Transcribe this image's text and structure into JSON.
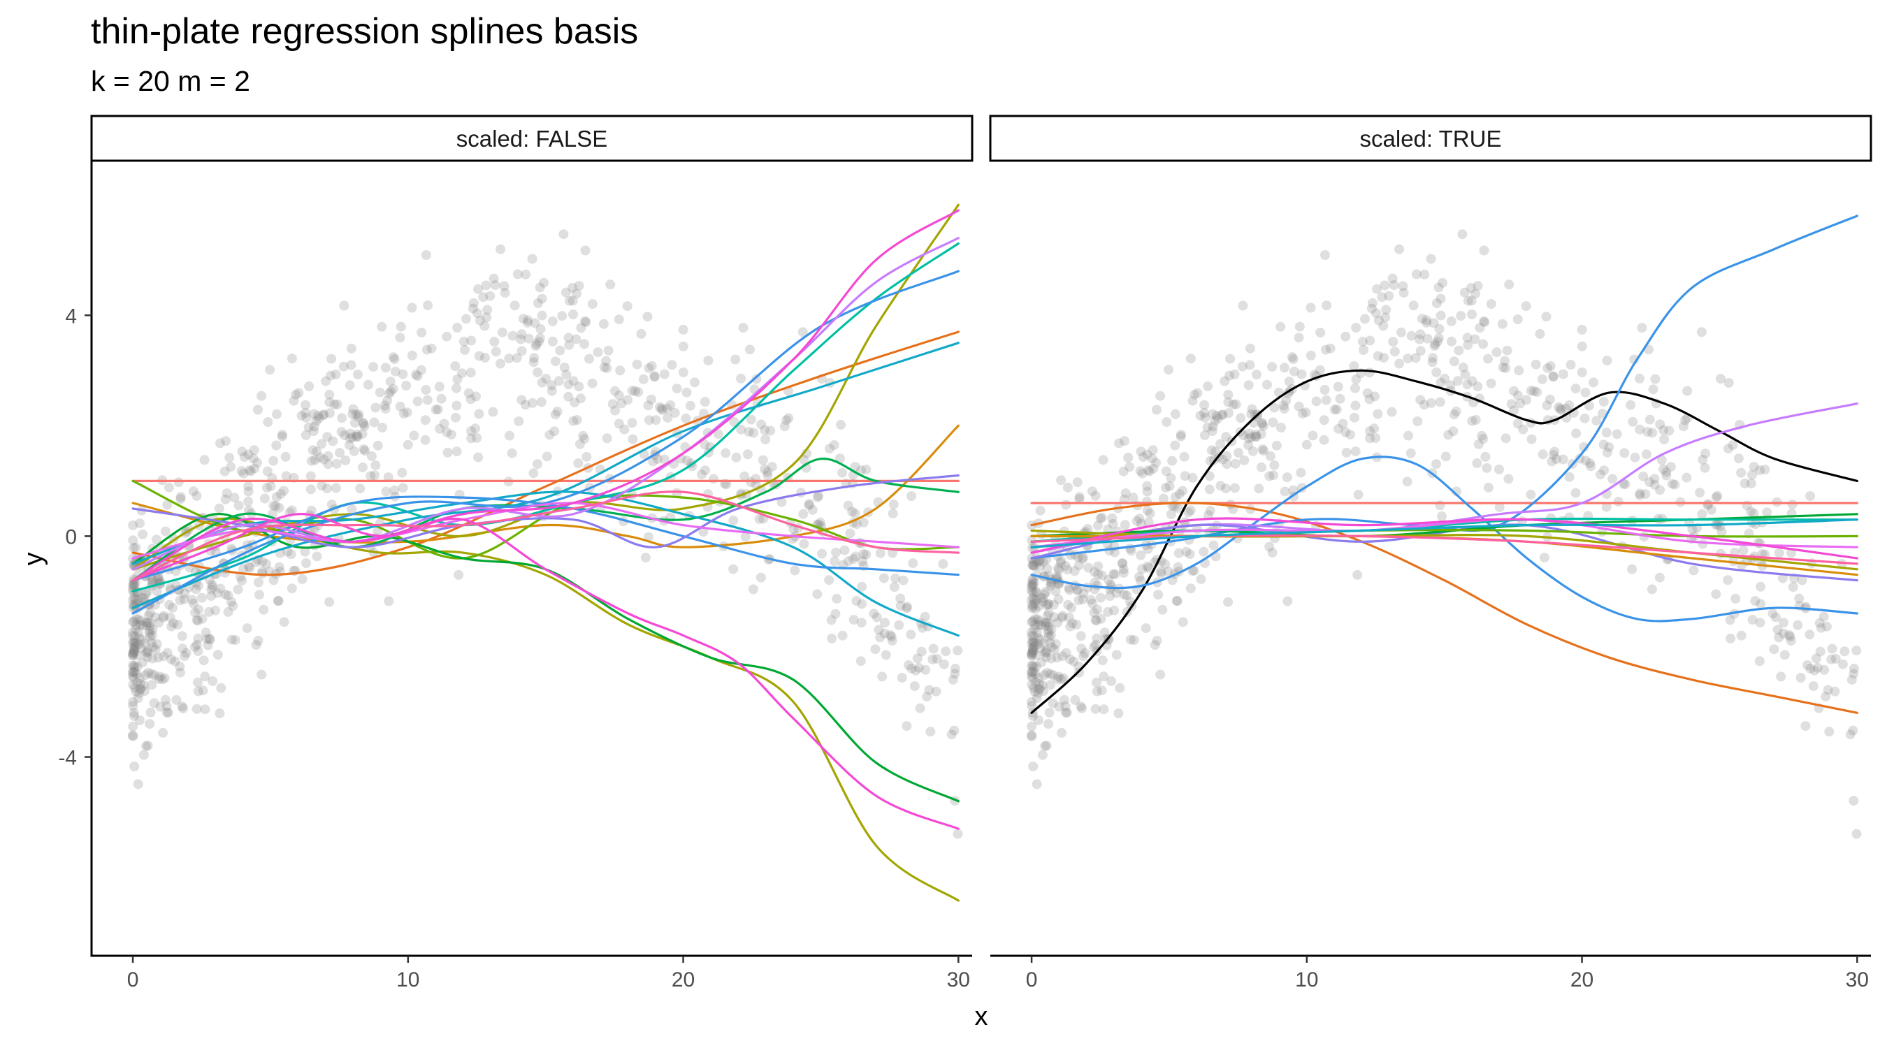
{
  "title": "thin-plate regression splines basis",
  "subtitle": "k = 20 m = 2",
  "chart_data": {
    "type": "line",
    "xlabel": "x",
    "ylabel": "y",
    "xlim": [
      -1.5,
      30.5
    ],
    "ylim": [
      -7.6,
      6.8
    ],
    "x_ticks": [
      0,
      10,
      20,
      30
    ],
    "x_tick_labels": [
      "0",
      "10",
      "20",
      "30"
    ],
    "y_ticks": [
      -4,
      0,
      4
    ],
    "y_tick_labels": [
      "-4",
      "0",
      "4"
    ],
    "grid": false,
    "legend": "none",
    "point_color": "#808080",
    "panels": [
      {
        "strip": "scaled: FALSE",
        "series": [
          {
            "color": "#F8766D",
            "x": [
              0,
              30
            ],
            "y": [
              1.0,
              1.0
            ]
          },
          {
            "color": "#E6711B",
            "x": [
              0,
              5,
              10,
              15,
              20,
              25,
              30
            ],
            "y": [
              -0.3,
              -0.7,
              -0.2,
              0.9,
              2.0,
              2.9,
              3.7
            ]
          },
          {
            "color": "#D98C0A",
            "x": [
              0,
              5,
              10,
              15,
              18,
              20,
              24,
              27,
              30
            ],
            "y": [
              0.6,
              0.0,
              -0.1,
              0.2,
              0.0,
              -0.2,
              0.0,
              0.5,
              2.0
            ]
          },
          {
            "color": "#A3A500",
            "x": [
              0,
              3,
              6,
              9,
              12,
              15,
              18,
              21,
              24,
              27,
              30
            ],
            "y": [
              -0.6,
              0.3,
              0.0,
              -0.3,
              -0.3,
              -0.7,
              -1.6,
              -2.2,
              -3.0,
              -5.6,
              -6.6
            ]
          },
          {
            "color": "#A3A500",
            "x": [
              0,
              4,
              8,
              12,
              16,
              20,
              24,
              27,
              30
            ],
            "y": [
              -0.6,
              0.0,
              0.4,
              0.0,
              0.6,
              0.5,
              1.3,
              3.8,
              6.0
            ]
          },
          {
            "color": "#6BB100",
            "x": [
              0,
              4,
              8,
              12,
              16,
              20,
              24,
              27,
              30
            ],
            "y": [
              1.0,
              0.1,
              0.3,
              -0.4,
              0.6,
              0.7,
              0.3,
              -0.2,
              -0.2
            ]
          },
          {
            "color": "#00A832",
            "x": [
              0,
              3,
              6,
              9,
              12,
              15,
              18,
              21,
              24,
              27,
              30
            ],
            "y": [
              -0.5,
              0.4,
              -0.2,
              0.0,
              -0.4,
              -0.6,
              -1.5,
              -2.2,
              -2.6,
              -4.1,
              -4.8
            ]
          },
          {
            "color": "#00B050",
            "x": [
              0,
              4,
              8,
              12,
              16,
              20,
              23,
              25,
              27,
              30
            ],
            "y": [
              -0.8,
              0.4,
              -0.2,
              0.5,
              0.5,
              0.3,
              0.8,
              1.4,
              1.0,
              0.8
            ]
          },
          {
            "color": "#00BFA4",
            "x": [
              0,
              4,
              8,
              12,
              16,
              20,
              24,
              27,
              30
            ],
            "y": [
              -1.0,
              -0.4,
              0.6,
              0.2,
              0.6,
              1.2,
              3.0,
              4.3,
              5.3
            ]
          },
          {
            "color": "#12A9C8",
            "x": [
              0,
              5,
              10,
              15,
              20,
              25,
              30
            ],
            "y": [
              -1.3,
              -0.3,
              0.3,
              0.7,
              1.9,
              2.7,
              3.5
            ]
          },
          {
            "color": "#12A9C8",
            "x": [
              0,
              4,
              8,
              12,
              16,
              20,
              24,
              27,
              30
            ],
            "y": [
              -0.5,
              0.2,
              0.3,
              0.6,
              0.8,
              0.4,
              -0.2,
              -1.2,
              -1.8
            ]
          },
          {
            "color": "#3A93E8",
            "x": [
              0,
              5,
              10,
              15,
              20,
              25,
              30
            ],
            "y": [
              -1.4,
              -0.1,
              0.6,
              0.6,
              1.8,
              3.8,
              4.8
            ]
          },
          {
            "color": "#3A93E8",
            "x": [
              0,
              4,
              8,
              12,
              16,
              20,
              24,
              27,
              30
            ],
            "y": [
              -0.8,
              -0.2,
              0.6,
              0.7,
              0.5,
              0.0,
              -0.5,
              -0.6,
              -0.7
            ]
          },
          {
            "color": "#8B7BEE",
            "x": [
              0,
              4,
              8,
              12,
              16,
              19,
              22,
              26,
              30
            ],
            "y": [
              0.5,
              0.2,
              -0.2,
              0.2,
              0.3,
              -0.2,
              0.5,
              0.9,
              1.1
            ]
          },
          {
            "color": "#C77CFF",
            "x": [
              0,
              4,
              8,
              12,
              16,
              20,
              24,
              27,
              30
            ],
            "y": [
              -0.6,
              0.2,
              -0.1,
              0.5,
              0.4,
              1.5,
              3.2,
              4.6,
              5.4
            ]
          },
          {
            "color": "#E76BF3",
            "x": [
              0,
              4,
              8,
              12,
              16,
              20,
              24,
              27,
              30
            ],
            "y": [
              -0.4,
              0.1,
              -0.1,
              0.3,
              0.6,
              0.2,
              0.0,
              -0.1,
              -0.2
            ]
          },
          {
            "color": "#F449D5",
            "x": [
              0,
              4,
              8,
              12,
              16,
              20,
              24,
              27,
              30
            ],
            "y": [
              -0.8,
              0.3,
              -0.1,
              0.4,
              0.6,
              1.5,
              3.2,
              5.0,
              5.9
            ]
          },
          {
            "color": "#F449D5",
            "x": [
              0,
              3,
              6,
              9,
              12,
              15,
              18,
              20,
              22,
              24,
              27,
              30
            ],
            "y": [
              -0.8,
              -0.2,
              0.4,
              0.0,
              0.3,
              -0.6,
              -1.4,
              -1.8,
              -2.3,
              -3.3,
              -4.7,
              -5.3
            ]
          },
          {
            "color": "#FF61A0",
            "x": [
              0,
              4,
              8,
              12,
              16,
              20,
              24,
              27,
              30
            ],
            "y": [
              -0.8,
              0.1,
              0.2,
              0.2,
              0.5,
              0.8,
              0.2,
              -0.2,
              -0.3
            ]
          }
        ]
      },
      {
        "strip": "scaled: TRUE",
        "series": [
          {
            "color": "#000000",
            "x": [
              0,
              2,
              4,
              6,
              8,
              10,
              12,
              14,
              16,
              18,
              19,
              21,
              23,
              25,
              27,
              30
            ],
            "y": [
              -3.2,
              -2.3,
              -1.0,
              0.9,
              2.1,
              2.8,
              3.0,
              2.8,
              2.5,
              2.1,
              2.1,
              2.6,
              2.4,
              1.9,
              1.4,
              1.0
            ]
          },
          {
            "color": "#F8766D",
            "x": [
              0,
              30
            ],
            "y": [
              0.6,
              0.6
            ]
          },
          {
            "color": "#E6711B",
            "x": [
              0,
              3,
              6,
              9,
              12,
              15,
              18,
              21,
              24,
              27,
              30
            ],
            "y": [
              0.2,
              0.5,
              0.6,
              0.4,
              -0.1,
              -0.8,
              -1.6,
              -2.2,
              -2.6,
              -2.9,
              -3.2
            ]
          },
          {
            "color": "#3A93E8",
            "x": [
              0,
              2,
              4,
              6,
              8,
              10,
              12,
              14,
              16,
              18,
              20,
              22,
              24,
              27,
              30
            ],
            "y": [
              -0.7,
              -0.9,
              -0.9,
              -0.5,
              0.2,
              0.9,
              1.4,
              1.3,
              0.5,
              -0.4,
              -1.1,
              -1.5,
              -1.5,
              -1.3,
              -1.4
            ]
          },
          {
            "color": "#3A93E8",
            "x": [
              0,
              5,
              10,
              14,
              17,
              20,
              22,
              24,
              27,
              30
            ],
            "y": [
              -0.4,
              -0.1,
              0.3,
              0.2,
              0.2,
              1.5,
              3.2,
              4.5,
              5.2,
              5.8
            ]
          },
          {
            "color": "#C77CFF",
            "x": [
              0,
              6,
              12,
              17,
              20,
              23,
              26,
              30
            ],
            "y": [
              -0.3,
              0.2,
              0.1,
              0.4,
              0.6,
              1.5,
              2.0,
              2.4
            ]
          },
          {
            "color": "#8B7BEE",
            "x": [
              0,
              6,
              12,
              18,
              24,
              30
            ],
            "y": [
              -0.4,
              0.2,
              -0.1,
              0.2,
              -0.5,
              -0.8
            ]
          },
          {
            "color": "#00A832",
            "x": [
              0,
              6,
              12,
              18,
              24,
              30
            ],
            "y": [
              0.0,
              0.1,
              0.0,
              0.2,
              0.3,
              0.4
            ]
          },
          {
            "color": "#00BFA4",
            "x": [
              0,
              6,
              12,
              18,
              24,
              30
            ],
            "y": [
              -0.1,
              0.1,
              0.1,
              0.3,
              0.3,
              0.3
            ]
          },
          {
            "color": "#6BB100",
            "x": [
              0,
              6,
              12,
              18,
              24,
              30
            ],
            "y": [
              0.0,
              0.0,
              0.1,
              0.1,
              0.0,
              0.0
            ]
          },
          {
            "color": "#A3A500",
            "x": [
              0,
              6,
              12,
              18,
              24,
              30
            ],
            "y": [
              0.1,
              0.0,
              0.0,
              0.0,
              -0.3,
              -0.6
            ]
          },
          {
            "color": "#D98C0A",
            "x": [
              0,
              6,
              12,
              18,
              24,
              30
            ],
            "y": [
              0.0,
              0.0,
              0.0,
              -0.1,
              -0.4,
              -0.7
            ]
          },
          {
            "color": "#E76BF3",
            "x": [
              0,
              6,
              12,
              18,
              24,
              30
            ],
            "y": [
              -0.2,
              0.1,
              0.1,
              0.3,
              -0.1,
              -0.2
            ]
          },
          {
            "color": "#F449D5",
            "x": [
              0,
              6,
              12,
              18,
              24,
              30
            ],
            "y": [
              -0.3,
              0.3,
              0.2,
              0.3,
              0.0,
              -0.4
            ]
          },
          {
            "color": "#FF61A0",
            "x": [
              0,
              6,
              12,
              18,
              24,
              30
            ],
            "y": [
              -0.1,
              0.0,
              0.0,
              -0.1,
              -0.3,
              -0.5
            ]
          },
          {
            "color": "#12A9C8",
            "x": [
              0,
              6,
              12,
              18,
              24,
              30
            ],
            "y": [
              -0.2,
              0.0,
              0.1,
              0.2,
              0.2,
              0.3
            ]
          }
        ]
      }
    ]
  }
}
